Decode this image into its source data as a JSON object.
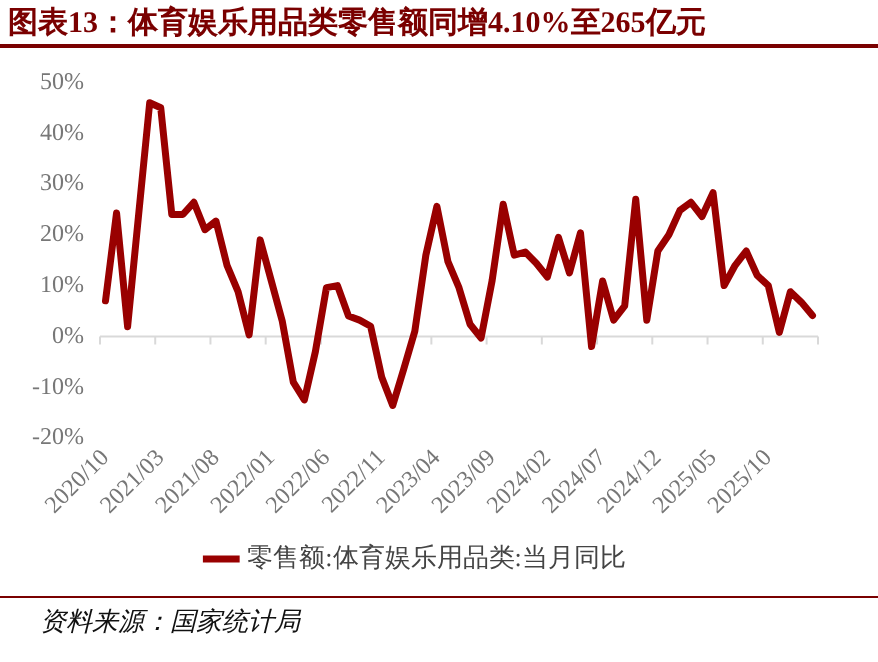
{
  "chart_data": {
    "type": "line",
    "title": "图表13：体育娱乐用品类零售额同增4.10%至265亿元",
    "categories": [
      "2020/10",
      null,
      null,
      null,
      null,
      "2021/03",
      null,
      null,
      null,
      null,
      "2021/08",
      null,
      null,
      null,
      null,
      "2022/01",
      null,
      null,
      null,
      null,
      "2022/06",
      null,
      null,
      null,
      null,
      "2022/11",
      null,
      null,
      null,
      null,
      "2023/04",
      null,
      null,
      null,
      null,
      "2023/09",
      null,
      null,
      null,
      null,
      "2024/02",
      null,
      null,
      null,
      null,
      "2024/07",
      null,
      null,
      null,
      null,
      "2024/12",
      null,
      null,
      null,
      null,
      "2025/05",
      null,
      null,
      null,
      null,
      "2025/10",
      null,
      null,
      null,
      null
    ],
    "series": [
      {
        "name": "零售额:体育娱乐用品类:当月同比",
        "color": "#990000",
        "values": [
          7.0,
          24.3,
          1.9,
          24,
          46,
          45,
          24,
          24,
          26.4,
          21,
          22.7,
          14,
          8.8,
          0.3,
          19,
          11,
          3,
          -9,
          -12.5,
          -3,
          9.6,
          10,
          4,
          3.2,
          2,
          -8,
          -13.6,
          -6.4,
          1,
          16,
          25.6,
          14.7,
          9.6,
          2.4,
          -0.3,
          11,
          26,
          16,
          16.6,
          14.4,
          11.7,
          19.5,
          12.5,
          20.4,
          -2,
          10.9,
          3.2,
          6,
          27,
          3.2,
          16.8,
          20,
          24.8,
          26.4,
          23.6,
          28.3,
          10,
          14,
          16.8,
          12,
          10,
          0.8,
          8.8,
          6.7,
          4.1
        ]
      }
    ],
    "ylim": [
      -20,
      50
    ],
    "yticks": [
      {
        "value": -20,
        "label": "-20%"
      },
      {
        "value": -10,
        "label": "-10%"
      },
      {
        "value": 0,
        "label": "0%"
      },
      {
        "value": 10,
        "label": "10%"
      },
      {
        "value": 20,
        "label": "20%"
      },
      {
        "value": 30,
        "label": "30%"
      },
      {
        "value": 40,
        "label": "40%"
      },
      {
        "value": 50,
        "label": "50%"
      }
    ],
    "ref_lines": [
      {
        "axis": "y",
        "value": 0,
        "color": "#d9d9d9"
      }
    ],
    "grid": false,
    "legend": "bottom",
    "marker": "none",
    "line_style": "solid",
    "annotations": [
      "资料来源：国家统计局"
    ]
  }
}
